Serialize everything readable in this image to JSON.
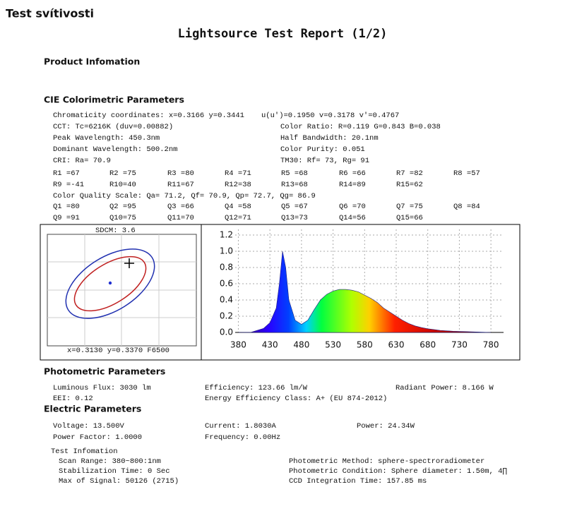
{
  "header": {
    "site_title": "Test svítivosti",
    "title": "Lightsource Test Report (1/2)"
  },
  "product": {
    "heading": "Product Infomation"
  },
  "cie": {
    "heading": "CIE Colorimetric Parameters",
    "text_rows": [
      [
        "Chromaticity coordinates: x=0.3166 y=0.3441",
        "u(u')=0.1950 v=0.3178 v'=0.4767"
      ],
      [
        "CCT: Tc=6216K (duv=0.00882)",
        "Color Ratio: R=0.119  G=0.843  B=0.038"
      ],
      [
        "Peak Wavelength: 450.3nm",
        "Half Bandwidth: 20.1nm"
      ],
      [
        "Dominant Wavelength: 500.2nm",
        "Color Purity: 0.051"
      ],
      [
        "CRI: Ra= 70.9",
        "TM30: Rf=   73, Rg=   91"
      ]
    ],
    "cri_rows": [
      [
        "R1 =67",
        "R2 =75",
        "R3 =80",
        "R4 =71",
        "R5 =68",
        "R6 =66",
        "R7 =82",
        "R8 =57"
      ],
      [
        "R9 =-41",
        "R10=40",
        "R11=67",
        "R12=38",
        "R13=68",
        "R14=89",
        "R15=62"
      ]
    ],
    "cqs": "Color Quality Scale: Qa= 71.2, Qf= 70.9, Qp= 72.7, Qg= 86.9",
    "cqs_rows": [
      [
        "Q1 =80",
        "Q2 =95",
        "Q3 =66",
        "Q4 =58",
        "Q5 =67",
        "Q6 =70",
        "Q7 =75",
        "Q8 =84"
      ],
      [
        "Q9 =91",
        "Q10=75",
        "Q11=70",
        "Q12=71",
        "Q13=73",
        "Q14=56",
        "Q15=66"
      ]
    ]
  },
  "chromaticity": {
    "sdcm": "SDCM:  3.6",
    "reference": "x=0.3130 y=0.3370 F6500"
  },
  "chart_data": {
    "type": "area",
    "x": [
      380,
      400,
      420,
      430,
      440,
      445,
      450,
      455,
      460,
      470,
      480,
      490,
      500,
      510,
      520,
      530,
      540,
      550,
      560,
      570,
      580,
      590,
      600,
      610,
      620,
      630,
      640,
      650,
      660,
      670,
      680,
      690,
      700,
      720,
      740,
      760,
      780
    ],
    "values": [
      0,
      0.002,
      0.05,
      0.12,
      0.3,
      0.6,
      1.0,
      0.8,
      0.4,
      0.15,
      0.1,
      0.15,
      0.28,
      0.4,
      0.47,
      0.51,
      0.53,
      0.53,
      0.52,
      0.5,
      0.46,
      0.42,
      0.37,
      0.3,
      0.25,
      0.2,
      0.15,
      0.11,
      0.08,
      0.06,
      0.045,
      0.035,
      0.025,
      0.015,
      0.01,
      0.005,
      0
    ],
    "xlim": [
      375,
      800
    ],
    "xticks": [
      380,
      430,
      480,
      530,
      580,
      630,
      680,
      730,
      780
    ],
    "ylim": [
      0,
      1.2
    ],
    "yticks": [
      {
        "value": 0,
        "label": "0.0"
      },
      0.2,
      0.4,
      0.6,
      0.8,
      {
        "value": 1,
        "label": "1.0"
      },
      1.2
    ],
    "grid": true
  },
  "photometric": {
    "heading": "Photometric Parameters",
    "rows": [
      [
        "Luminous Flux: 3030 lm",
        "Efficiency: 123.66 lm/W",
        "Radiant Power: 8.166 W"
      ],
      [
        "EEI:  0.12",
        "Energy Efficiency Class: A+ (EU 874-2012)"
      ]
    ]
  },
  "electric": {
    "heading": "Electric Parameters",
    "rows": [
      [
        "Voltage: 13.500V",
        "Current: 1.8030A",
        "Power: 24.34W"
      ],
      [
        "Power Factor: 1.0000",
        "Frequency: 0.00Hz"
      ]
    ]
  },
  "test": {
    "heading": "Test Infomation",
    "rows": [
      [
        "Scan Range: 380~800:1nm",
        "Photometric Method: sphere-spectroradiometer"
      ],
      [
        "Stabilization Time: 0 Sec",
        "Photometric Condition: Sphere diameter: 1.50m, 4∏"
      ],
      [
        "Max of Signal: 50126 (2715)",
        "CCD Integration Time: 157.85 ms"
      ]
    ]
  }
}
